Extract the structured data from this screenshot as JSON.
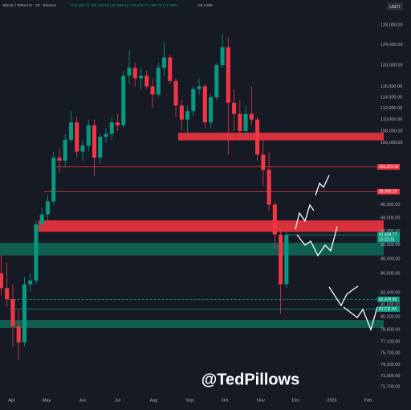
{
  "chart_data": {
    "type": "candlestick",
    "title": "Bitcoin / TetherUS · 1D · Binance",
    "subtitle": "O91,484.01 H91,950.00 L90,089.91 C91,459.77 +950.75 (+1.06%)",
    "volume_label": "Vol 2.59K",
    "currency": "USDT",
    "watermark": "@TedPillows",
    "log_scale": true,
    "up_color": "#089981",
    "down_color": "#f23645",
    "ylim": [
      70900,
      133200
    ],
    "xlim": [
      -10,
      314
    ],
    "x": [
      -9,
      -4,
      1,
      6,
      11,
      16,
      21,
      26,
      31,
      36,
      41,
      46,
      51,
      56,
      61,
      66,
      71,
      76,
      81,
      86,
      91,
      96,
      101,
      106,
      111,
      116,
      121,
      126,
      131,
      136,
      141,
      146,
      151,
      156,
      161,
      166,
      171,
      176,
      181,
      186,
      191,
      196,
      201,
      206,
      211,
      216,
      221,
      226,
      231,
      236
    ],
    "open": [
      86000,
      84000,
      82500,
      79000,
      77000,
      84500,
      85000,
      93000,
      94500,
      96500,
      103500,
      103000,
      106500,
      109500,
      104500,
      105500,
      109000,
      103500,
      107000,
      107500,
      109500,
      109000,
      118000,
      119500,
      117500,
      118000,
      116000,
      114500,
      119500,
      121500,
      117000,
      112500,
      110000,
      111500,
      115500,
      116000,
      109500,
      114000,
      120000,
      123500,
      113000,
      111000,
      108000,
      111000,
      110000,
      104000,
      101500,
      96000,
      91500,
      84500
    ],
    "high": [
      88500,
      87500,
      84500,
      81000,
      85500,
      86000,
      93500,
      95500,
      97500,
      104500,
      105000,
      107500,
      111500,
      110500,
      106500,
      110000,
      110000,
      107500,
      108500,
      110500,
      111000,
      119000,
      123000,
      120500,
      119500,
      119000,
      117500,
      120500,
      124500,
      122000,
      117500,
      113500,
      112500,
      116000,
      117500,
      116500,
      114500,
      120500,
      126000,
      125500,
      115500,
      113500,
      112500,
      116000,
      110500,
      106500,
      104500,
      96500,
      92500,
      92000
    ],
    "low": [
      83000,
      81500,
      76500,
      74800,
      76500,
      83500,
      84500,
      92500,
      93500,
      96000,
      101000,
      102000,
      106000,
      103500,
      103000,
      104500,
      100500,
      102500,
      106000,
      106500,
      108000,
      108500,
      116500,
      116000,
      115500,
      115500,
      112000,
      114000,
      118000,
      116500,
      110500,
      108000,
      107500,
      110500,
      114500,
      108500,
      108500,
      113500,
      119500,
      104000,
      108000,
      106500,
      107000,
      109000,
      103000,
      99000,
      95000,
      89500,
      80600,
      84000
    ],
    "close": [
      84000,
      82500,
      79000,
      77000,
      84500,
      85000,
      93000,
      94500,
      96500,
      103500,
      103000,
      106500,
      109500,
      104500,
      105500,
      109000,
      103500,
      107000,
      107500,
      109500,
      109000,
      118000,
      119500,
      117500,
      118000,
      116000,
      114500,
      119500,
      121500,
      117000,
      112500,
      110000,
      111500,
      115500,
      116000,
      109500,
      114000,
      120000,
      123500,
      113000,
      111000,
      108000,
      111000,
      110000,
      104000,
      101500,
      96000,
      91500,
      84500,
      91460
    ],
    "yticks": [
      {
        "value": 128000,
        "label": "128,000.00"
      },
      {
        "value": 124000,
        "label": "124,000.00"
      },
      {
        "value": 120000,
        "label": "120,000.00"
      },
      {
        "value": 116000,
        "label": "116,000.00"
      },
      {
        "value": 114000,
        "label": "114,000.00"
      },
      {
        "value": 112000,
        "label": "112,000.00"
      },
      {
        "value": 110000,
        "label": "110,000.00"
      },
      {
        "value": 108000,
        "label": "108,000.00"
      },
      {
        "value": 106000,
        "label": "106,000.00"
      },
      {
        "value": 96000,
        "label": "96,000.00"
      },
      {
        "value": 94000,
        "label": "94,000.00"
      },
      {
        "value": 92000,
        "label": "92,000.00"
      },
      {
        "value": 90000,
        "label": "90,000.00"
      },
      {
        "value": 88000,
        "label": "88,000.00"
      },
      {
        "value": 86000,
        "label": "86,000.00"
      },
      {
        "value": 83400,
        "label": "83,400.00"
      },
      {
        "value": 81800,
        "label": "81,800.00"
      },
      {
        "value": 80200,
        "label": "80,200.00"
      },
      {
        "value": 78600,
        "label": "78,600.00"
      },
      {
        "value": 77100,
        "label": "77,100.00"
      },
      {
        "value": 75700,
        "label": "75,700.00"
      },
      {
        "value": 74300,
        "label": "74,300.00"
      },
      {
        "value": 73000,
        "label": "73,000.00"
      },
      {
        "value": 71700,
        "label": "71,700.00"
      }
    ],
    "xticks": [
      {
        "value": 0,
        "label": "Apr"
      },
      {
        "value": 30,
        "label": "May"
      },
      {
        "value": 61,
        "label": "Jun"
      },
      {
        "value": 91,
        "label": "Jul"
      },
      {
        "value": 122,
        "label": "Aug"
      },
      {
        "value": 153,
        "label": "Sep"
      },
      {
        "value": 183,
        "label": "Oct"
      },
      {
        "value": 214,
        "label": "Nov"
      },
      {
        "value": 244,
        "label": "Dec"
      },
      {
        "value": 275,
        "label": "2026"
      },
      {
        "value": 306,
        "label": "Feb"
      }
    ],
    "zones": [
      {
        "low": 106400,
        "high": 107700,
        "from": 143,
        "color": "#d8303d"
      },
      {
        "low": 91900,
        "high": 93600,
        "from": 23,
        "color": "#d8303d"
      },
      {
        "low": 88500,
        "high": 90300,
        "from": -10,
        "color": "#0f5e51"
      },
      {
        "low": 78800,
        "high": 79800,
        "from": -10,
        "color": "#0f5e51"
      }
    ],
    "levels": [
      {
        "value": 101972.37,
        "label": "101,972.37",
        "from": 38,
        "color": "#f23645"
      },
      {
        "value": 98009.19,
        "label": "98,009.19",
        "from": 28,
        "color": "#f23645"
      },
      {
        "value": 91459.77,
        "label": "91,459.77",
        "from": 236,
        "color": "#089981",
        "note": "15:22:31"
      },
      {
        "value": 82478.95,
        "label": "82,478.95",
        "from": -2,
        "color": "#089981",
        "dashed": true
      },
      {
        "value": 81211.04,
        "label": "81,211.04",
        "from": -2,
        "color": "#089981"
      }
    ]
  }
}
